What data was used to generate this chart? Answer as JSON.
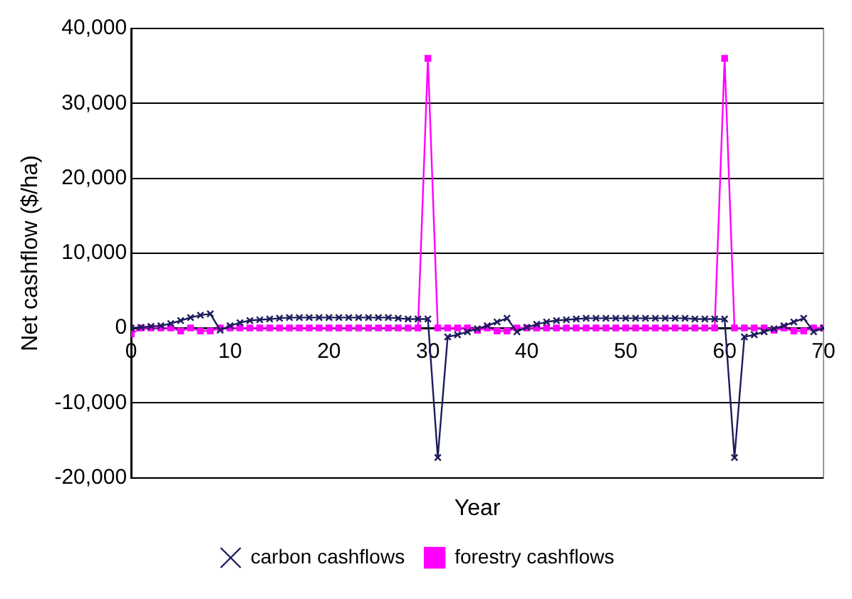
{
  "chart_data": {
    "type": "line",
    "xlabel": "Year",
    "ylabel": "Net cashflow ($/ha)",
    "x": [
      0,
      1,
      2,
      3,
      4,
      5,
      6,
      7,
      8,
      9,
      10,
      11,
      12,
      13,
      14,
      15,
      16,
      17,
      18,
      19,
      20,
      21,
      22,
      23,
      24,
      25,
      26,
      27,
      28,
      29,
      30,
      31,
      32,
      33,
      34,
      35,
      36,
      37,
      38,
      39,
      40,
      41,
      42,
      43,
      44,
      45,
      46,
      47,
      48,
      49,
      50,
      51,
      52,
      53,
      54,
      55,
      56,
      57,
      58,
      59,
      60,
      61,
      62,
      63,
      64,
      65,
      66,
      67,
      68,
      69,
      70
    ],
    "series": [
      {
        "name": "carbon cashflows",
        "color": "#1c1c5c",
        "marker": "cross",
        "values": [
          0,
          100,
          200,
          300,
          600,
          1000,
          1400,
          1700,
          1900,
          -300,
          300,
          700,
          1000,
          1100,
          1200,
          1300,
          1400,
          1400,
          1400,
          1400,
          1400,
          1400,
          1400,
          1400,
          1400,
          1400,
          1400,
          1300,
          1200,
          1200,
          1200,
          -17300,
          -1200,
          -900,
          -500,
          -100,
          300,
          800,
          1300,
          -500,
          100,
          500,
          800,
          1000,
          1100,
          1200,
          1300,
          1300,
          1300,
          1300,
          1300,
          1300,
          1300,
          1300,
          1300,
          1300,
          1300,
          1200,
          1200,
          1200,
          1200,
          -17300,
          -1200,
          -900,
          -500,
          -100,
          300,
          800,
          1300,
          -500,
          0
        ]
      },
      {
        "name": "forestry cashflows",
        "color": "#ff00ff",
        "marker": "square",
        "values": [
          -800,
          0,
          0,
          0,
          0,
          -400,
          0,
          -400,
          -400,
          0,
          0,
          0,
          0,
          0,
          0,
          0,
          0,
          0,
          0,
          0,
          0,
          0,
          0,
          0,
          0,
          0,
          0,
          0,
          0,
          0,
          36000,
          0,
          0,
          0,
          0,
          -300,
          0,
          -400,
          -400,
          0,
          0,
          0,
          0,
          0,
          0,
          0,
          0,
          0,
          0,
          0,
          0,
          0,
          0,
          0,
          0,
          0,
          0,
          0,
          0,
          0,
          36000,
          0,
          0,
          0,
          0,
          -300,
          0,
          -400,
          -400,
          0,
          0
        ]
      }
    ],
    "xlim": [
      0,
      70
    ],
    "xticks": [
      0,
      10,
      20,
      30,
      40,
      50,
      60,
      70
    ],
    "ylim": [
      -20000,
      40000
    ],
    "yticks": [
      {
        "value": -20000,
        "label": "-20,000"
      },
      {
        "value": -10000,
        "label": "-10,000"
      },
      0,
      {
        "value": 10000,
        "label": "10,000"
      },
      {
        "value": 20000,
        "label": "20,000"
      },
      {
        "value": 30000,
        "label": "30,000"
      },
      {
        "value": 40000,
        "label": "40,000"
      }
    ],
    "grid": "y",
    "legend": "bottom",
    "line_style": "solid"
  }
}
